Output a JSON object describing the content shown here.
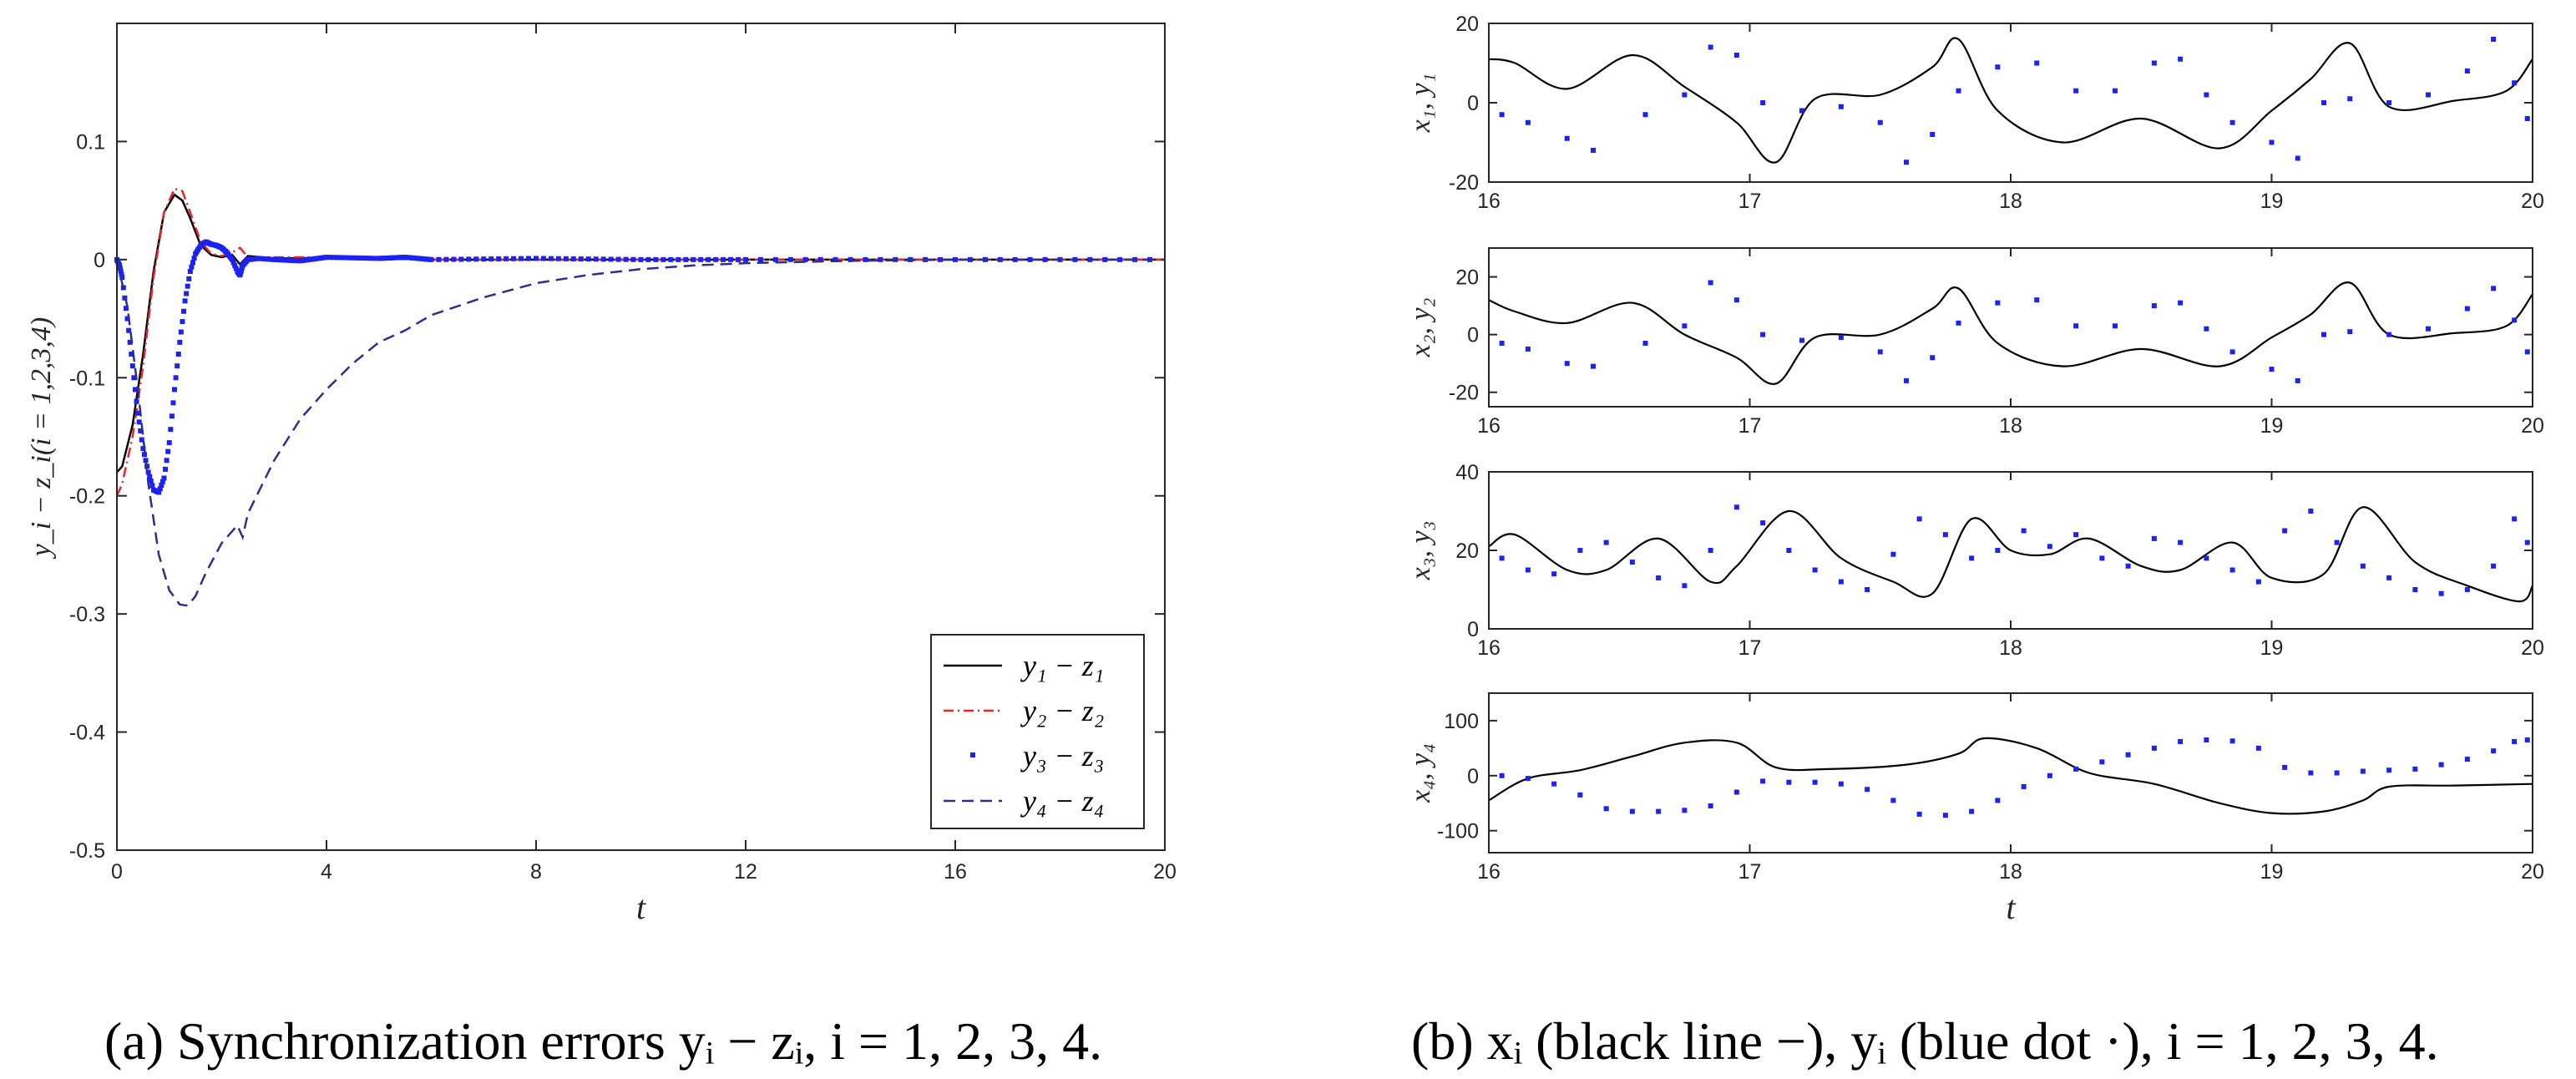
{
  "chart_data": [
    {
      "type": "line",
      "panel": "a",
      "xlabel": "t",
      "ylabel": "y_i − z_i(i = 1,2,3,4)",
      "xlim": [
        0,
        20
      ],
      "ylim": [
        -0.5,
        0.2
      ],
      "xticks": [
        "0",
        "4",
        "8",
        "12",
        "16",
        "20"
      ],
      "xtick_values": [
        0,
        4,
        8,
        12,
        16,
        20
      ],
      "yticks": [
        "0.1",
        "0",
        "-0.1",
        "-0.2",
        "-0.3",
        "-0.4",
        "-0.5"
      ],
      "ytick_values": [
        0.1,
        0,
        -0.1,
        -0.2,
        -0.3,
        -0.4,
        -0.5
      ],
      "legend_position": "bottom-right",
      "series": [
        {
          "name": "y₁ − z₁",
          "style": "solid",
          "color": "#000000",
          "x": [
            0,
            0.1,
            0.3,
            0.5,
            0.7,
            0.9,
            1.1,
            1.25,
            1.4,
            1.6,
            1.8,
            2.0,
            2.2,
            2.35,
            2.5,
            3.0,
            4,
            5,
            6,
            8,
            10,
            12,
            16,
            20
          ],
          "y": [
            -0.18,
            -0.175,
            -0.14,
            -0.08,
            -0.01,
            0.04,
            0.055,
            0.05,
            0.035,
            0.012,
            0.004,
            0.002,
            0.004,
            -0.004,
            0.003,
            0.001,
            0.0015,
            0.001,
            0,
            0,
            0,
            0,
            0,
            0
          ]
        },
        {
          "name": "y₂ − z₂",
          "style": "dashdot",
          "color": "#e8232a",
          "x": [
            0,
            0.1,
            0.3,
            0.5,
            0.7,
            0.9,
            1.1,
            1.25,
            1.4,
            1.6,
            1.8,
            2.0,
            2.2,
            2.35,
            2.5,
            3.0,
            4,
            5,
            6,
            8,
            10,
            12,
            16,
            20
          ],
          "y": [
            -0.2,
            -0.19,
            -0.15,
            -0.09,
            -0.015,
            0.04,
            0.06,
            0.058,
            0.04,
            0.015,
            0.005,
            0.003,
            0.006,
            0.01,
            0.002,
            0.002,
            0.002,
            0.001,
            0,
            0,
            0,
            0,
            0,
            0
          ]
        },
        {
          "name": "y₃ − z₃",
          "style": "dots",
          "color": "#1c22f0",
          "x": [
            0,
            0.05,
            0.1,
            0.2,
            0.3,
            0.4,
            0.5,
            0.6,
            0.7,
            0.8,
            0.9,
            1.0,
            1.1,
            1.2,
            1.3,
            1.4,
            1.5,
            1.6,
            1.7,
            1.8,
            1.9,
            2.0,
            2.1,
            2.2,
            2.3,
            2.35,
            2.4,
            2.5,
            2.7,
            3.0,
            3.5,
            4,
            5,
            5.5,
            6,
            8,
            10,
            12,
            16,
            20
          ],
          "y": [
            0,
            -0.005,
            -0.015,
            -0.05,
            -0.09,
            -0.13,
            -0.16,
            -0.18,
            -0.195,
            -0.197,
            -0.185,
            -0.155,
            -0.11,
            -0.07,
            -0.035,
            -0.01,
            0.005,
            0.012,
            0.015,
            0.013,
            0.012,
            0.01,
            0.006,
            0.0,
            -0.01,
            -0.013,
            -0.005,
            0.0,
            0.001,
            0.0,
            -0.001,
            0.002,
            0.001,
            0.002,
            0.0,
            0.001,
            0.0,
            0.0,
            0.0,
            0.0
          ]
        },
        {
          "name": "y₄ − z₄",
          "style": "dashed",
          "color": "#2b2f8f",
          "x": [
            0,
            0.2,
            0.4,
            0.6,
            0.8,
            1.0,
            1.2,
            1.35,
            1.5,
            1.7,
            2.0,
            2.3,
            2.4,
            2.5,
            3.0,
            3.5,
            4,
            4.5,
            5,
            5.5,
            6,
            7,
            8,
            9,
            10,
            11,
            12,
            13,
            14,
            16,
            18,
            20
          ],
          "y": [
            0,
            -0.04,
            -0.11,
            -0.19,
            -0.25,
            -0.28,
            -0.292,
            -0.293,
            -0.285,
            -0.265,
            -0.24,
            -0.225,
            -0.235,
            -0.215,
            -0.17,
            -0.135,
            -0.11,
            -0.088,
            -0.07,
            -0.06,
            -0.047,
            -0.032,
            -0.02,
            -0.013,
            -0.008,
            -0.005,
            -0.003,
            -0.002,
            -0.001,
            0,
            0,
            0
          ]
        }
      ]
    },
    {
      "type": "multi-panel line/scatter",
      "panel": "b",
      "xlabel": "t",
      "xlim": [
        16,
        20
      ],
      "xticks": [
        "16",
        "17",
        "18",
        "19",
        "20"
      ],
      "xtick_values": [
        16,
        17,
        18,
        19,
        20
      ],
      "legend": [
        "x_i (black line −)",
        "y_i (blue dot ·)"
      ],
      "line_color": "#000000",
      "dot_color": "#1c22f0",
      "panels": [
        {
          "ylabel": "x₁, y₁",
          "ylim": [
            -20,
            20
          ],
          "yticks": [
            "20",
            "0",
            "-20"
          ],
          "ytick_values": [
            20,
            0,
            -20
          ],
          "x_line": [
            16,
            16.1,
            16.3,
            16.55,
            16.75,
            16.95,
            17.1,
            17.25,
            17.5,
            17.7,
            17.8,
            17.95,
            18.2,
            18.5,
            18.8,
            19.0,
            19.15,
            19.3,
            19.45,
            19.7,
            19.9,
            20
          ],
          "y_line": [
            11,
            10,
            3.5,
            12,
            4,
            -5,
            -15,
            1,
            2,
            9,
            16,
            -2,
            -10,
            -4,
            -11.5,
            -2,
            6,
            15,
            -1,
            0.5,
            3,
            11
          ],
          "x_dots": [
            16.05,
            16.15,
            16.3,
            16.4,
            16.6,
            16.75,
            16.85,
            16.95,
            17.05,
            17.2,
            17.35,
            17.5,
            17.6,
            17.7,
            17.8,
            17.95,
            18.1,
            18.25,
            18.4,
            18.55,
            18.65,
            18.75,
            18.85,
            19.0,
            19.1,
            19.2,
            19.3,
            19.45,
            19.6,
            19.75,
            19.85,
            19.93,
            19.98
          ],
          "y_dots": [
            -3,
            -5,
            -9,
            -12,
            -3,
            2,
            14,
            12,
            0,
            -2,
            -1,
            -5,
            -15,
            -8,
            3,
            9,
            10,
            3,
            3,
            10,
            11,
            2,
            -5,
            -10,
            -14,
            0,
            1,
            0,
            2,
            8,
            16,
            5,
            -4
          ]
        },
        {
          "ylabel": "x₂, y₂",
          "ylim": [
            -25,
            30
          ],
          "yticks": [
            "20",
            "0",
            "-20"
          ],
          "ytick_values": [
            20,
            0,
            -20
          ],
          "x_line": [
            16,
            16.1,
            16.3,
            16.55,
            16.75,
            16.95,
            17.1,
            17.25,
            17.5,
            17.7,
            17.8,
            17.95,
            18.2,
            18.5,
            18.8,
            19.0,
            19.15,
            19.3,
            19.45,
            19.7,
            19.9,
            20
          ],
          "y_line": [
            12,
            8,
            4,
            11,
            0,
            -8,
            -17,
            -1,
            0,
            9,
            16,
            -3,
            -11,
            -5,
            -11,
            -1,
            7,
            18,
            0,
            0.5,
            3,
            14
          ],
          "x_dots": [
            16.05,
            16.15,
            16.3,
            16.4,
            16.6,
            16.75,
            16.85,
            16.95,
            17.05,
            17.2,
            17.35,
            17.5,
            17.6,
            17.7,
            17.8,
            17.95,
            18.1,
            18.25,
            18.4,
            18.55,
            18.65,
            18.75,
            18.85,
            19.0,
            19.1,
            19.2,
            19.3,
            19.45,
            19.6,
            19.75,
            19.85,
            19.93,
            19.98
          ],
          "y_dots": [
            -3,
            -5,
            -10,
            -11,
            -3,
            3,
            18,
            12,
            0,
            -2,
            -1,
            -6,
            -16,
            -8,
            4,
            11,
            12,
            3,
            3,
            10,
            11,
            2,
            -6,
            -12,
            -16,
            0,
            1,
            0,
            2,
            9,
            16,
            5,
            -6
          ]
        },
        {
          "ylabel": "x₃, y₃",
          "ylim": [
            0,
            40
          ],
          "yticks": [
            "40",
            "20",
            "0"
          ],
          "ytick_values": [
            40,
            20,
            0
          ],
          "x_line": [
            16,
            16.1,
            16.3,
            16.45,
            16.65,
            16.85,
            16.95,
            17.15,
            17.35,
            17.55,
            17.7,
            17.85,
            18.0,
            18.15,
            18.3,
            18.5,
            18.65,
            18.85,
            19.0,
            19.2,
            19.35,
            19.55,
            19.75,
            19.95,
            20
          ],
          "y_line": [
            21,
            24,
            15,
            15,
            23,
            12,
            16,
            30,
            18,
            12,
            9,
            28,
            20,
            19,
            23,
            16,
            15,
            22,
            13,
            14,
            31,
            17,
            11,
            7,
            11
          ],
          "x_dots": [
            16.05,
            16.15,
            16.25,
            16.35,
            16.45,
            16.55,
            16.65,
            16.75,
            16.85,
            16.95,
            17.05,
            17.15,
            17.25,
            17.35,
            17.45,
            17.55,
            17.65,
            17.75,
            17.85,
            17.95,
            18.05,
            18.15,
            18.25,
            18.35,
            18.45,
            18.55,
            18.65,
            18.75,
            18.85,
            18.95,
            19.05,
            19.15,
            19.25,
            19.35,
            19.45,
            19.55,
            19.65,
            19.75,
            19.85,
            19.93,
            19.98
          ],
          "y_dots": [
            18,
            15,
            14,
            20,
            22,
            17,
            13,
            11,
            20,
            31,
            27,
            20,
            15,
            12,
            10,
            19,
            28,
            24,
            18,
            20,
            25,
            21,
            24,
            18,
            16,
            23,
            22,
            18,
            15,
            12,
            25,
            30,
            22,
            16,
            13,
            10,
            9,
            10,
            16,
            28,
            22
          ]
        },
        {
          "ylabel": "x₄, y₄",
          "ylim": [
            -140,
            150
          ],
          "yticks": [
            "100",
            "0",
            "-100"
          ],
          "ytick_values": [
            100,
            0,
            -100
          ],
          "x_line": [
            16,
            16.15,
            16.35,
            16.55,
            16.75,
            16.95,
            17.1,
            17.3,
            17.6,
            17.8,
            17.9,
            18.1,
            18.3,
            18.55,
            18.8,
            19.0,
            19.2,
            19.35,
            19.45,
            19.7,
            20
          ],
          "y_line": [
            -45,
            -5,
            10,
            35,
            60,
            60,
            15,
            12,
            20,
            40,
            68,
            50,
            5,
            -15,
            -50,
            -68,
            -65,
            -45,
            -20,
            -18,
            -15
          ],
          "x_dots": [
            16.05,
            16.15,
            16.25,
            16.35,
            16.45,
            16.55,
            16.65,
            16.75,
            16.85,
            16.95,
            17.05,
            17.15,
            17.25,
            17.35,
            17.45,
            17.55,
            17.65,
            17.75,
            17.85,
            17.95,
            18.05,
            18.15,
            18.25,
            18.35,
            18.45,
            18.55,
            18.65,
            18.75,
            18.85,
            18.95,
            19.05,
            19.15,
            19.25,
            19.35,
            19.45,
            19.55,
            19.65,
            19.75,
            19.85,
            19.93,
            19.98
          ],
          "y_dots": [
            0,
            -5,
            -15,
            -35,
            -60,
            -65,
            -65,
            -63,
            -55,
            -30,
            -10,
            -12,
            -12,
            -15,
            -25,
            -45,
            -70,
            -72,
            -65,
            -45,
            -20,
            0,
            12,
            25,
            38,
            50,
            62,
            65,
            63,
            50,
            15,
            5,
            5,
            8,
            10,
            12,
            20,
            30,
            45,
            62,
            65
          ]
        }
      ]
    }
  ],
  "legend_a": [
    "y₁ − z₁",
    "y₂ − z₂",
    "y₃ − z₃",
    "y₄ − z₄"
  ],
  "captions": {
    "a": "(a) Synchronization errors yᵢ − zᵢ, i = 1, 2, 3, 4.",
    "b": "(b) xᵢ (black line −), yᵢ (blue dot ·), i = 1, 2, 3, 4."
  }
}
